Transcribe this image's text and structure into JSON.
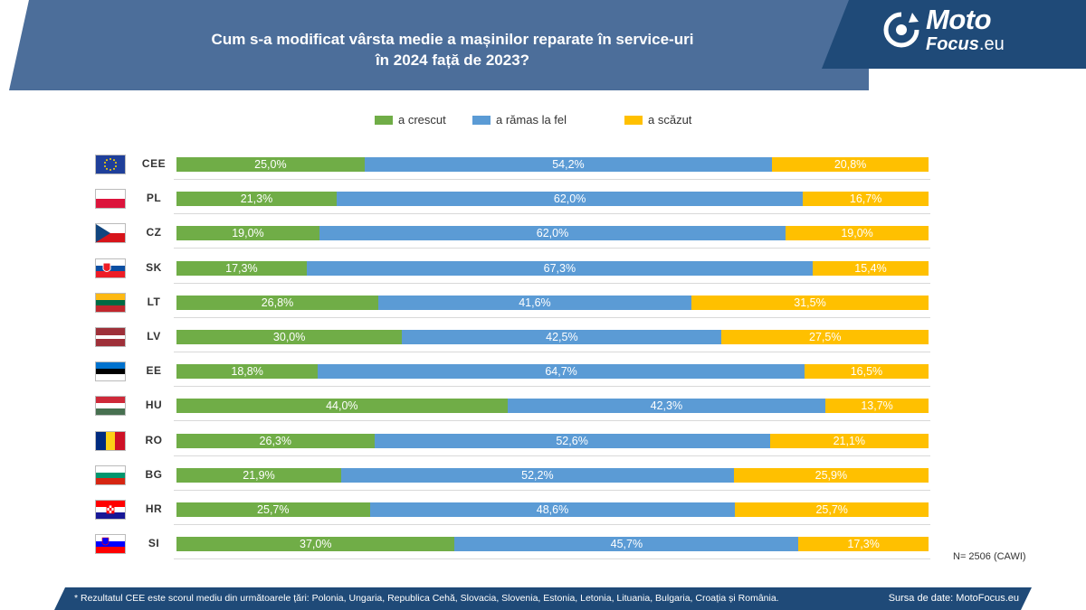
{
  "header": {
    "title_line1": "Cum s-a modificat vârsta medie a mașinilor reparate în service-uri",
    "title_line2": "în 2024 față de 2023?"
  },
  "logo": {
    "line1": "Moto",
    "line2": "Focus",
    "line2_suffix": ".eu"
  },
  "chart_data": {
    "type": "bar",
    "orientation": "horizontal-stacked-100",
    "title": "Cum s-a modificat vârsta medie a mașinilor reparate în service-uri în 2024 față de 2023?",
    "categories": [
      "CEE",
      "PL",
      "CZ",
      "SK",
      "LT",
      "LV",
      "EE",
      "HU",
      "RO",
      "BG",
      "HR",
      "SI"
    ],
    "series": [
      {
        "name": "a crescut",
        "color": "#70ad47",
        "values": [
          25.0,
          21.3,
          19.0,
          17.3,
          26.8,
          30.0,
          18.8,
          44.0,
          26.3,
          21.9,
          25.7,
          37.0
        ]
      },
      {
        "name": "a rămas la fel",
        "color": "#5b9bd5",
        "values": [
          54.2,
          62.0,
          62.0,
          67.3,
          41.6,
          42.5,
          64.7,
          42.3,
          52.6,
          52.2,
          48.6,
          45.7
        ]
      },
      {
        "name": "a scăzut",
        "color": "#ffc000",
        "values": [
          20.8,
          16.7,
          19.0,
          15.4,
          31.5,
          27.5,
          16.5,
          13.7,
          21.1,
          25.9,
          25.7,
          17.3
        ]
      }
    ],
    "labels": [
      [
        "25,0%",
        "54,2%",
        "20,8%"
      ],
      [
        "21,3%",
        "62,0%",
        "16,7%"
      ],
      [
        "19,0%",
        "62,0%",
        "19,0%"
      ],
      [
        "17,3%",
        "67,3%",
        "15,4%"
      ],
      [
        "26,8%",
        "41,6%",
        "31,5%"
      ],
      [
        "30,0%",
        "42,5%",
        "27,5%"
      ],
      [
        "18,8%",
        "64,7%",
        "16,5%"
      ],
      [
        "44,0%",
        "42,3%",
        "13,7%"
      ],
      [
        "26,3%",
        "52,6%",
        "21,1%"
      ],
      [
        "21,9%",
        "52,2%",
        "25,9%"
      ],
      [
        "25,7%",
        "48,6%",
        "25,7%"
      ],
      [
        "37,0%",
        "45,7%",
        "17,3%"
      ]
    ],
    "legend_position": "top",
    "grid": true
  },
  "sample_note": "N= 2506 (CAWI)",
  "footer": {
    "note": "* Rezultatul CEE este scorul mediu din următoarele țări: Polonia, Ungaria, Republica Cehă, Slovacia, Slovenia, Estonia, Letonia, Lituania, Bulgaria, Croația și România.",
    "source": "Sursa de date: MotoFocus.eu"
  }
}
